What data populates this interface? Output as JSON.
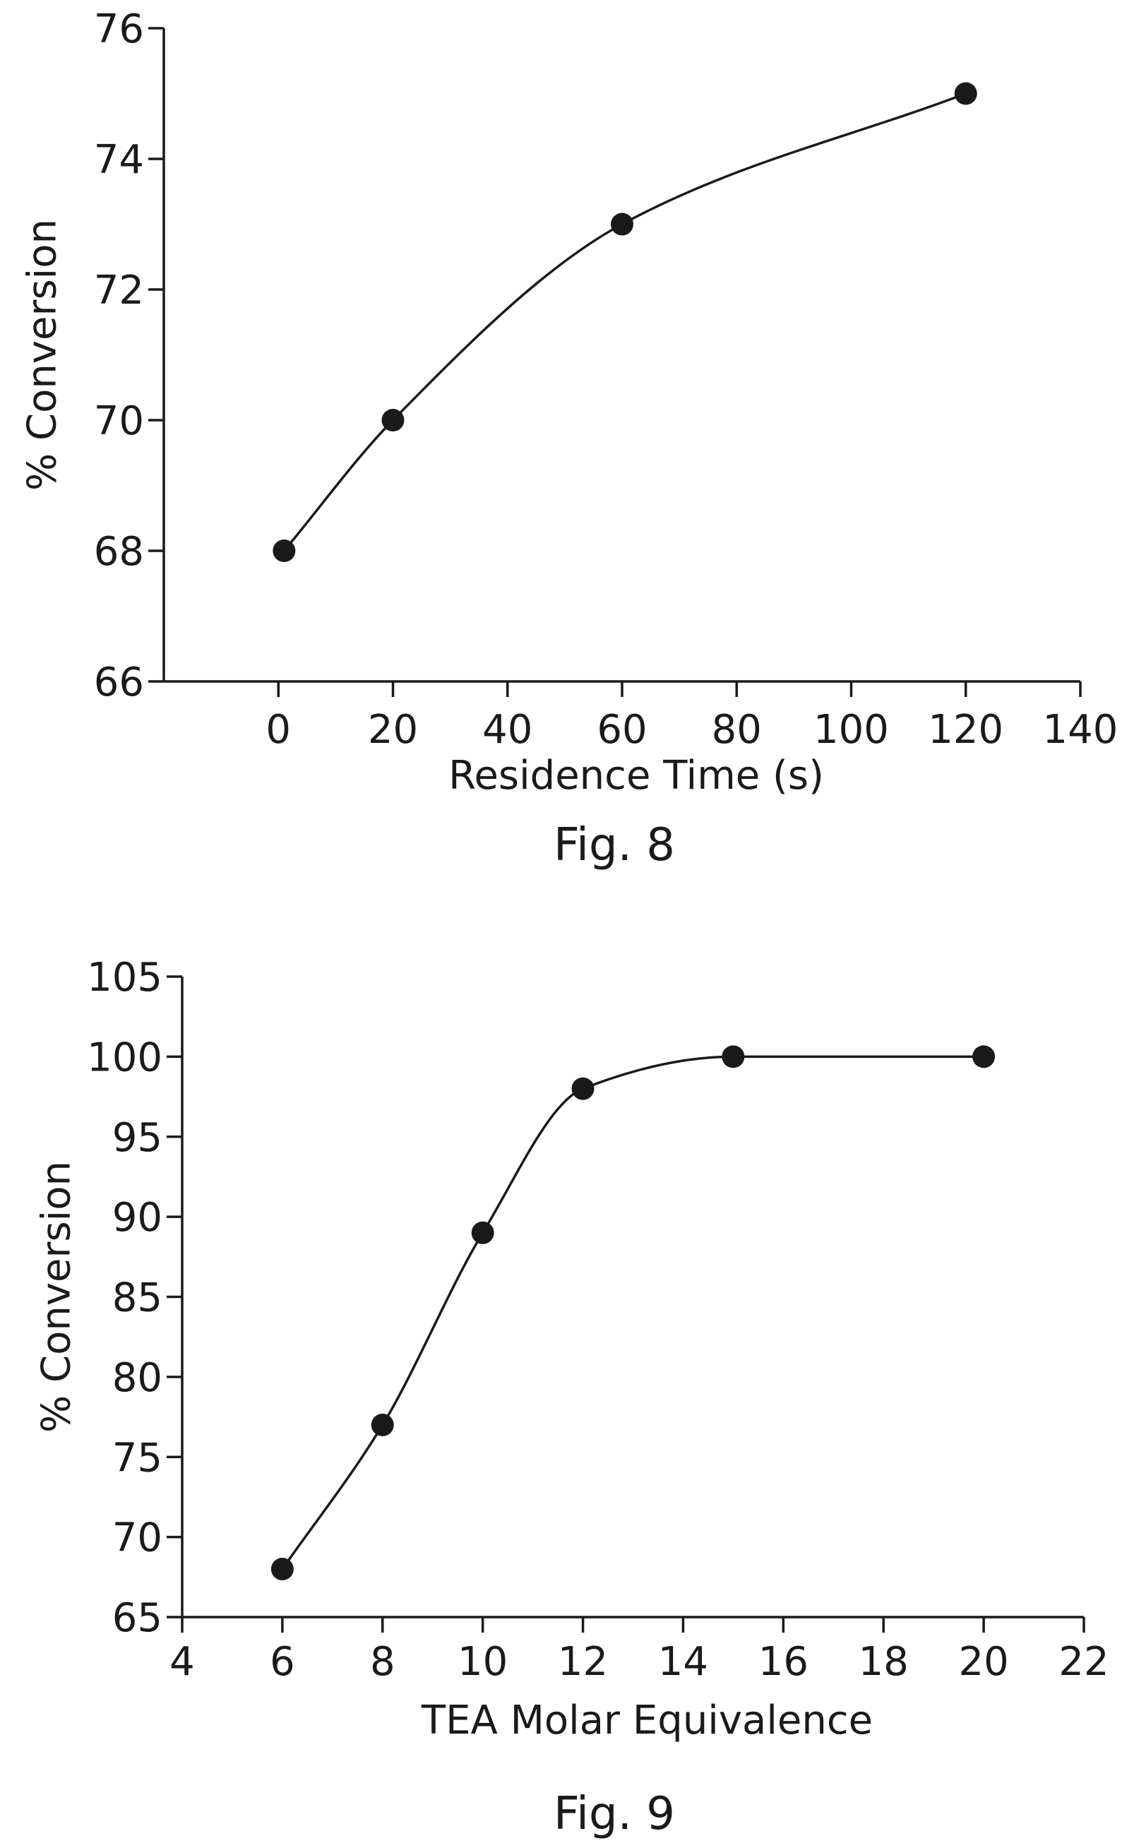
{
  "chart_data": [
    {
      "type": "line",
      "caption": "Fig. 8",
      "xlabel": "Residence Time (s)",
      "ylabel": "% Conversion",
      "xlim": [
        -20,
        140
      ],
      "ylim": [
        66,
        76
      ],
      "xticks": [
        0,
        20,
        40,
        60,
        80,
        100,
        120,
        140
      ],
      "yticks": [
        66,
        68,
        70,
        72,
        74,
        76
      ],
      "grid": false,
      "series": [
        {
          "x": [
            1,
            20,
            60,
            120
          ],
          "y": [
            68,
            70,
            73,
            75
          ],
          "smooth": true,
          "markers": true
        }
      ]
    },
    {
      "type": "line",
      "caption": "Fig. 9",
      "xlabel": "TEA Molar Equivalence",
      "ylabel": "% Conversion",
      "xlim": [
        4,
        22
      ],
      "ylim": [
        65,
        105
      ],
      "xticks": [
        4,
        6,
        8,
        10,
        12,
        14,
        16,
        18,
        20,
        22
      ],
      "yticks": [
        65,
        70,
        75,
        80,
        85,
        90,
        95,
        100,
        105
      ],
      "grid": false,
      "series": [
        {
          "x": [
            6,
            8,
            10,
            12,
            15,
            20
          ],
          "y": [
            68,
            77,
            89,
            98,
            100,
            100
          ],
          "smooth": true,
          "markers": true
        }
      ]
    }
  ]
}
